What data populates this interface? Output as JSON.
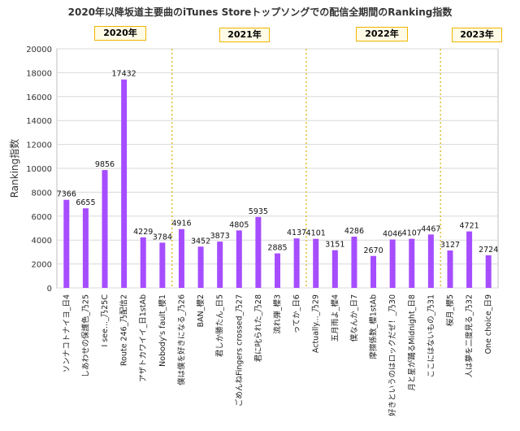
{
  "chart_data": {
    "type": "bar",
    "title": "2020年以降坂道主要曲のiTunes Storeトップソングでの配信全期間のRanking指数",
    "ylabel": "Ranking指数",
    "xlabel": "",
    "ylim": [
      0,
      20000
    ],
    "yticks": [
      0,
      2000,
      4000,
      6000,
      8000,
      10000,
      12000,
      14000,
      16000,
      18000,
      20000
    ],
    "grid": "horizontal",
    "bar_color": "#a64dff",
    "divider_color": "#d4b000",
    "categories": [
      "ソンナコトナイヨ_日4",
      "しあわせの保護色_乃25",
      "I see..._乃25C",
      "Route 246_乃配信2",
      "アザトカワイイ_日1stAb",
      "Nobody's fault_櫻1",
      "僕は僕を好きになる_乃26",
      "BAN_櫻2",
      "君しか勝たん_日5",
      "ごめんねFingers crossed_乃27",
      "君に叱られた_乃28",
      "流れ弾_櫻3",
      "ってか_日6",
      "Actually..._乃29",
      "五月雨よ_櫻4",
      "僕なんか_日7",
      "摩擦係数_櫻1stAb",
      "好きというのはロックだぜ！_乃30",
      "月と星が踊るMidnight_日8",
      "ここにはないもの_乃31",
      "桜月_櫻5",
      "人は夢を二度見る_乃32",
      "One choice_日9"
    ],
    "values": [
      7366,
      6655,
      9856,
      17432,
      4229,
      3784,
      4916,
      3452,
      3873,
      4805,
      5935,
      2885,
      4137,
      4101,
      3151,
      4286,
      2670,
      4046,
      4107,
      4467,
      3127,
      4721,
      2724
    ],
    "year_groups": [
      {
        "label": "2020年",
        "start": 0,
        "end": 5
      },
      {
        "label": "2021年",
        "start": 6,
        "end": 12
      },
      {
        "label": "2022年",
        "start": 13,
        "end": 19
      },
      {
        "label": "2023年",
        "start": 20,
        "end": 22
      }
    ]
  }
}
